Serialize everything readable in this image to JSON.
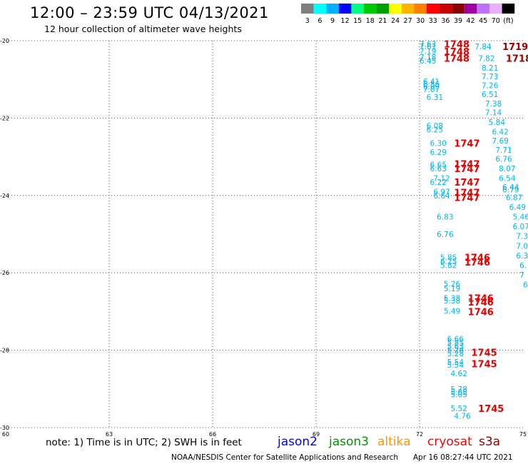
{
  "header": {
    "title": "12:00 – 23:59 UTC 04/13/2021",
    "subtitle": "12 hour collection of altimeter wave heights"
  },
  "legend": {
    "colors": [
      "#7f7f7f",
      "#00ffff",
      "#00b0ff",
      "#0000ff",
      "#00ff7f",
      "#00c800",
      "#00a000",
      "#ffff00",
      "#ffb400",
      "#ff7f00",
      "#ff0000",
      "#c80000",
      "#8b0000",
      "#a000a0",
      "#c070ff",
      "#e8b0ff",
      "#000000"
    ],
    "labels": [
      "3",
      "6",
      "9",
      "12",
      "15",
      "18",
      "21",
      "24",
      "27",
      "30",
      "33",
      "36",
      "39",
      "42",
      "45",
      "70",
      "(ft)"
    ]
  },
  "note": "note:  1) Time is in UTC;  2) SWH is in feet",
  "satellites": [
    {
      "name": "jason2",
      "color": "#0000ff"
    },
    {
      "name": "jason3",
      "color": "#009600"
    },
    {
      "name": "altika",
      "color": "#ff9600"
    },
    {
      "name": "cryosat",
      "color": "#ff0000"
    },
    {
      "name": "s3a",
      "color": "#8b0000"
    }
  ],
  "footer": {
    "left": "NOAA/NESDIS Center for Satellite Applications and Research",
    "right": "Apr 16 08:27:44 UTC 2021"
  },
  "chart_data": {
    "type": "scatter",
    "xlim": [
      60,
      75
    ],
    "ylim": [
      -30,
      -20
    ],
    "x_ticks": [
      "60",
      "63",
      "66",
      "69",
      "72",
      "75"
    ],
    "y_ticks": [
      "-20",
      "-22",
      "-24",
      "-26",
      "-28",
      "-30"
    ],
    "grid": true,
    "colors": {
      "wave": "#00b4f0",
      "time": "#e60000",
      "time_dark": "#a00000"
    },
    "wave_labels": [
      {
        "x": 72.0,
        "y": -20.08,
        "t": "7.63"
      },
      {
        "x": 72.0,
        "y": -20.15,
        "t": "7.61"
      },
      {
        "x": 72.0,
        "y": -20.27,
        "t": "7.19"
      },
      {
        "x": 72.0,
        "y": -20.42,
        "t": "7.18"
      },
      {
        "x": 72.0,
        "y": -20.52,
        "t": "6.45"
      },
      {
        "x": 72.1,
        "y": -21.05,
        "t": "6.41"
      },
      {
        "x": 72.1,
        "y": -21.12,
        "t": "6.56"
      },
      {
        "x": 72.1,
        "y": -21.18,
        "t": "6.09"
      },
      {
        "x": 72.1,
        "y": -21.25,
        "t": "7.07"
      },
      {
        "x": 72.2,
        "y": -21.46,
        "t": "6.31"
      },
      {
        "x": 72.2,
        "y": -22.2,
        "t": "6.08"
      },
      {
        "x": 72.2,
        "y": -22.3,
        "t": "6.25"
      },
      {
        "x": 72.3,
        "y": -22.65,
        "t": "6.30"
      },
      {
        "x": 72.3,
        "y": -22.88,
        "t": "6.29"
      },
      {
        "x": 72.3,
        "y": -23.2,
        "t": "6.65"
      },
      {
        "x": 72.3,
        "y": -23.3,
        "t": "6.63"
      },
      {
        "x": 72.4,
        "y": -23.55,
        "t": "7.12"
      },
      {
        "x": 72.3,
        "y": -23.65,
        "t": "6.22"
      },
      {
        "x": 72.4,
        "y": -23.9,
        "t": "6.97"
      },
      {
        "x": 72.4,
        "y": -24.0,
        "t": "6.64"
      },
      {
        "x": 72.5,
        "y": -24.55,
        "t": "6.83"
      },
      {
        "x": 72.5,
        "y": -25.0,
        "t": "6.76"
      },
      {
        "x": 72.6,
        "y": -25.6,
        "t": "5.85"
      },
      {
        "x": 72.6,
        "y": -25.7,
        "t": "6.25"
      },
      {
        "x": 72.6,
        "y": -25.8,
        "t": "5.82"
      },
      {
        "x": 72.7,
        "y": -26.28,
        "t": "5.26"
      },
      {
        "x": 72.7,
        "y": -26.4,
        "t": "5.19"
      },
      {
        "x": 72.7,
        "y": -26.65,
        "t": "5.38"
      },
      {
        "x": 72.7,
        "y": -26.72,
        "t": "5.38"
      },
      {
        "x": 72.7,
        "y": -26.98,
        "t": "5.49"
      },
      {
        "x": 72.8,
        "y": -27.7,
        "t": "6.66"
      },
      {
        "x": 72.8,
        "y": -27.8,
        "t": "5.85"
      },
      {
        "x": 72.8,
        "y": -27.9,
        "t": "5.63"
      },
      {
        "x": 72.8,
        "y": -28.0,
        "t": "5.28"
      },
      {
        "x": 72.8,
        "y": -28.08,
        "t": "5.28"
      },
      {
        "x": 72.8,
        "y": -28.3,
        "t": "5.54"
      },
      {
        "x": 72.8,
        "y": -28.38,
        "t": "5.54"
      },
      {
        "x": 72.9,
        "y": -28.6,
        "t": "4.62"
      },
      {
        "x": 72.9,
        "y": -29.0,
        "t": "5.78"
      },
      {
        "x": 72.9,
        "y": -29.08,
        "t": "5.05"
      },
      {
        "x": 72.9,
        "y": -29.14,
        "t": "5.05"
      },
      {
        "x": 72.9,
        "y": -29.5,
        "t": "5.52"
      },
      {
        "x": 73.0,
        "y": -29.7,
        "t": "4.76"
      },
      {
        "x": 73.6,
        "y": -20.15,
        "t": "7.84"
      },
      {
        "x": 73.7,
        "y": -20.45,
        "t": "7.82"
      },
      {
        "x": 73.8,
        "y": -20.7,
        "t": "8.21"
      },
      {
        "x": 73.8,
        "y": -20.92,
        "t": "7.73"
      },
      {
        "x": 73.8,
        "y": -21.15,
        "t": "7.26"
      },
      {
        "x": 73.8,
        "y": -21.38,
        "t": "6.51"
      },
      {
        "x": 73.9,
        "y": -21.62,
        "t": "7.38"
      },
      {
        "x": 73.9,
        "y": -21.85,
        "t": "7.14"
      },
      {
        "x": 74.0,
        "y": -22.1,
        "t": "5.84"
      },
      {
        "x": 74.1,
        "y": -22.35,
        "t": "6.42"
      },
      {
        "x": 74.1,
        "y": -22.58,
        "t": "7.69"
      },
      {
        "x": 74.2,
        "y": -22.82,
        "t": "7.71"
      },
      {
        "x": 74.2,
        "y": -23.05,
        "t": "6.76"
      },
      {
        "x": 74.3,
        "y": -23.3,
        "t": "8.07"
      },
      {
        "x": 74.3,
        "y": -23.55,
        "t": "6.54"
      },
      {
        "x": 74.4,
        "y": -23.78,
        "t": "6.44"
      },
      {
        "x": 74.4,
        "y": -23.85,
        "t": "6.79"
      },
      {
        "x": 74.5,
        "y": -24.05,
        "t": "6.87"
      },
      {
        "x": 74.6,
        "y": -24.3,
        "t": "6.49"
      },
      {
        "x": 74.7,
        "y": -24.55,
        "t": "5.46"
      },
      {
        "x": 74.7,
        "y": -24.8,
        "t": "6.07"
      },
      {
        "x": 74.8,
        "y": -25.05,
        "t": "7.3"
      },
      {
        "x": 74.8,
        "y": -25.3,
        "t": "7.0"
      },
      {
        "x": 74.8,
        "y": -25.55,
        "t": "6.3"
      },
      {
        "x": 74.9,
        "y": -25.8,
        "t": "6."
      },
      {
        "x": 74.9,
        "y": -26.05,
        "t": "7"
      },
      {
        "x": 75.0,
        "y": -26.3,
        "t": "6"
      }
    ],
    "time_labels": [
      {
        "x": 72.7,
        "y": -20.08,
        "t": "1748"
      },
      {
        "x": 72.7,
        "y": -20.28,
        "t": "1748"
      },
      {
        "x": 72.7,
        "y": -20.45,
        "t": "1748"
      },
      {
        "x": 74.4,
        "y": -20.15,
        "t": "1719",
        "dark": true
      },
      {
        "x": 74.5,
        "y": -20.45,
        "t": "1718",
        "dark": true
      },
      {
        "x": 73.0,
        "y": -22.65,
        "t": "1747"
      },
      {
        "x": 73.0,
        "y": -23.18,
        "t": "1747"
      },
      {
        "x": 73.0,
        "y": -23.3,
        "t": "1747"
      },
      {
        "x": 73.0,
        "y": -23.65,
        "t": "1747"
      },
      {
        "x": 73.0,
        "y": -23.92,
        "t": "1747"
      },
      {
        "x": 73.0,
        "y": -24.05,
        "t": "1747"
      },
      {
        "x": 73.3,
        "y": -25.6,
        "t": "1746"
      },
      {
        "x": 73.3,
        "y": -25.72,
        "t": "1746"
      },
      {
        "x": 73.4,
        "y": -26.65,
        "t": "1746"
      },
      {
        "x": 73.4,
        "y": -26.75,
        "t": "1746"
      },
      {
        "x": 73.4,
        "y": -27.0,
        "t": "1746"
      },
      {
        "x": 73.5,
        "y": -28.05,
        "t": "1745"
      },
      {
        "x": 73.5,
        "y": -28.35,
        "t": "1745"
      },
      {
        "x": 73.7,
        "y": -29.5,
        "t": "1745"
      }
    ]
  }
}
